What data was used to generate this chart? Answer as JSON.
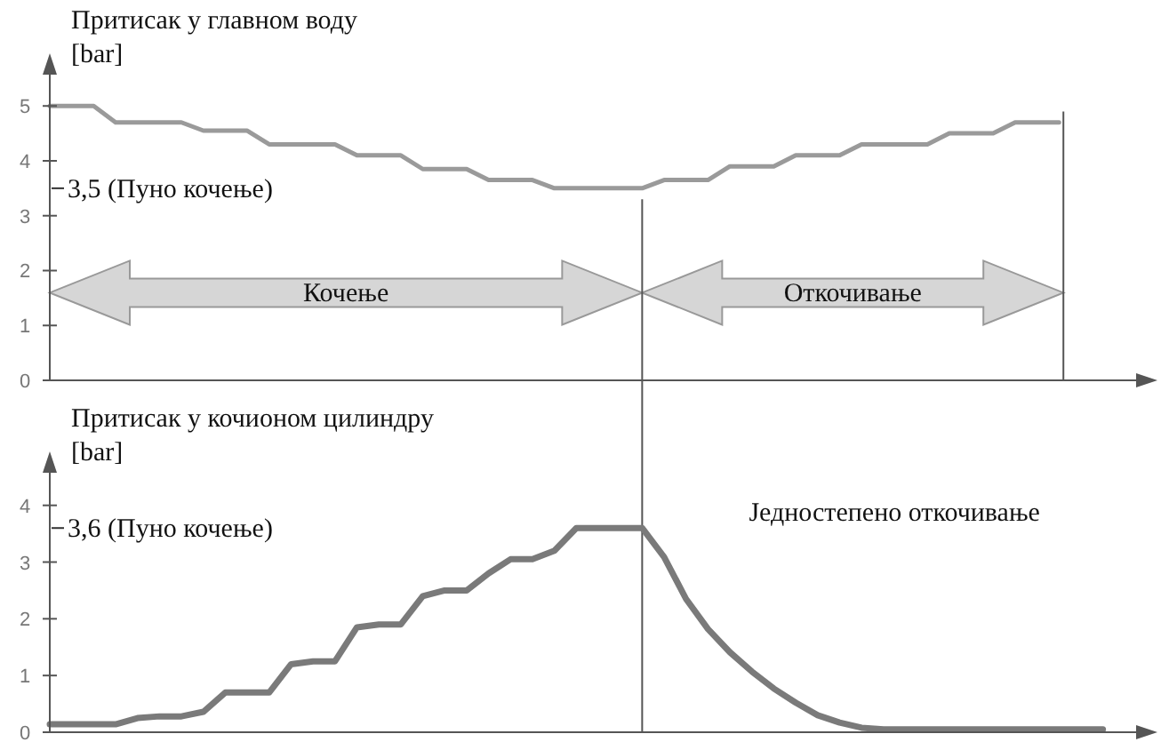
{
  "chart_data": [
    {
      "type": "line",
      "ylabel": "Притисак у главном воду\n[bar]",
      "categories": [
        null,
        null,
        null,
        null,
        null,
        null,
        null,
        null,
        null,
        null,
        null,
        null,
        null,
        null,
        null,
        null,
        null,
        null,
        null,
        null,
        null,
        null,
        null,
        null,
        null,
        null,
        null,
        null,
        null,
        null,
        null,
        null,
        null,
        null,
        null,
        null,
        null,
        null,
        null,
        null,
        null,
        null,
        null,
        null,
        null,
        null,
        null,
        null,
        null
      ],
      "ylim": [
        0,
        5.7
      ],
      "yticks": [
        0,
        1,
        2,
        3,
        4,
        5
      ],
      "tick_labels": "y",
      "grid": false,
      "marker": "none",
      "series": [
        {
          "color": "#9a9a9a",
          "values": [
            5,
            5,
            5,
            4.7,
            4.7,
            4.7,
            4.7,
            4.55,
            4.55,
            4.55,
            4.3,
            4.3,
            4.3,
            4.3,
            4.1,
            4.1,
            4.1,
            3.85,
            3.85,
            3.85,
            3.65,
            3.65,
            3.65,
            3.5,
            3.5,
            3.5,
            3.5,
            3.5,
            3.65,
            3.65,
            3.65,
            3.9,
            3.9,
            3.9,
            4.1,
            4.1,
            4.1,
            4.3,
            4.3,
            4.3,
            4.3,
            4.5,
            4.5,
            4.5,
            4.7,
            4.7,
            4.7,
            null,
            null
          ]
        }
      ],
      "annotations": [
        "3,5 (Пуно кочење)",
        "Кочење",
        "Откочивање"
      ]
    },
    {
      "type": "line",
      "ylabel": "Притисак у кочионом цилиндру\n[bar]",
      "categories": [
        null,
        null,
        null,
        null,
        null,
        null,
        null,
        null,
        null,
        null,
        null,
        null,
        null,
        null,
        null,
        null,
        null,
        null,
        null,
        null,
        null,
        null,
        null,
        null,
        null,
        null,
        null,
        null,
        null,
        null,
        null,
        null,
        null,
        null,
        null,
        null,
        null,
        null,
        null,
        null,
        null,
        null,
        null,
        null,
        null,
        null,
        null,
        null,
        null
      ],
      "ylim": [
        0,
        4.7
      ],
      "yticks": [
        0,
        1,
        2,
        3,
        4
      ],
      "tick_labels": "y",
      "grid": false,
      "marker": "none",
      "series": [
        {
          "color": "#7a7a7a",
          "values": [
            0.14,
            0.14,
            0.14,
            0.14,
            0.25,
            0.28,
            0.28,
            0.36,
            0.7,
            0.7,
            0.7,
            1.2,
            1.25,
            1.25,
            1.85,
            1.9,
            1.9,
            2.4,
            2.5,
            2.5,
            2.8,
            3.05,
            3.05,
            3.2,
            3.6,
            3.6,
            3.6,
            3.6,
            3.09,
            2.35,
            1.82,
            1.41,
            1.07,
            0.77,
            0.52,
            0.3,
            0.17,
            0.08,
            0.05,
            0.05,
            0.05,
            0.05,
            0.05,
            0.05,
            0.05,
            0.05,
            0.05,
            0.05,
            0.05
          ]
        }
      ],
      "annotations": [
        "3,6 (Пуно кочење)",
        "Једностепено откочивање"
      ]
    }
  ]
}
